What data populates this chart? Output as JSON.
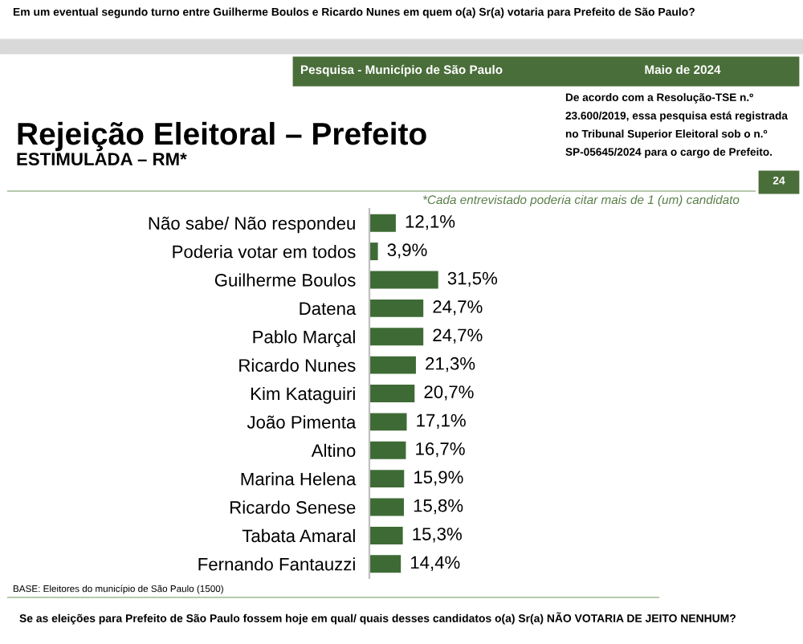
{
  "chart_data": {
    "type": "bar",
    "orientation": "horizontal",
    "title": "Rejeição Eleitoral – Prefeito",
    "subtitle": "ESTIMULADA – RM*",
    "categories": [
      "Não sabe/ Não respondeu",
      "Poderia votar em todos",
      "Guilherme Boulos",
      "Datena",
      "Pablo Marçal",
      "Ricardo Nunes",
      "Kim Kataguiri",
      "João Pimenta",
      "Altino",
      "Marina Helena",
      "Ricardo Senese",
      "Tabata Amaral",
      "Fernando Fantauzzi"
    ],
    "values": [
      12.1,
      3.9,
      31.5,
      24.7,
      24.7,
      21.3,
      20.7,
      17.1,
      16.7,
      15.9,
      15.8,
      15.3,
      14.4
    ],
    "value_labels": [
      "12,1%",
      "3,9%",
      "31,5%",
      "24,7%",
      "24,7%",
      "21,3%",
      "20,7%",
      "17,1%",
      "16,7%",
      "15,9%",
      "15,8%",
      "15,3%",
      "14,4%"
    ],
    "color": "#3e6b35",
    "tick_labels": "y",
    "grid": false,
    "legend": false,
    "annotations": [
      "Em um eventual segundo turno entre Guilherme Boulos e Ricardo Nunes em quem o(a) Sr(a) votaria para Prefeito de São Paulo?",
      "Pesquisa - Município de São Paulo",
      "Maio de 2024",
      "De acordo com a Resolução-TSE n.º 23.600/2019, essa pesquisa está registrada no Tribunal Superior Eleitoral sob o n.º SP-05645/2024 para o cargo de Prefeito.",
      "24",
      "*Cada entrevistado poderia citar mais de 1 (um) candidato",
      "BASE: Eleitores do município de São Paulo (1500)",
      "Se as eleições para Prefeito de São Paulo fossem hoje em qual/ quais desses candidatos o(a) Sr(a) NÃO VOTARIA DE JEITO NENHUM?"
    ]
  }
}
